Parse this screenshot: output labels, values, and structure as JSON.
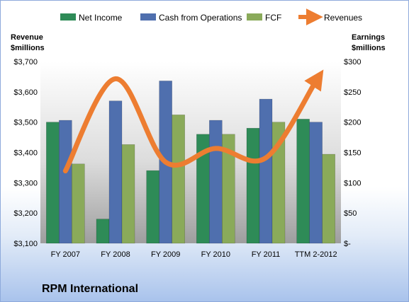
{
  "chart_data": {
    "type": "bar",
    "company": "RPM International",
    "categories": [
      "FY 2007",
      "FY 2008",
      "FY 2009",
      "FY 2010",
      "FY 2011",
      "TTM 2-2012"
    ],
    "left_axis": {
      "title_line1": "Revenue",
      "title_line2": "$millions",
      "ylim": [
        3100,
        3700
      ],
      "ticks": [
        3100,
        3200,
        3300,
        3400,
        3500,
        3600,
        3700
      ],
      "tick_labels": [
        "$3,100",
        "$3,200",
        "$3,300",
        "$3,400",
        "$3,500",
        "$3,600",
        "$3,700"
      ]
    },
    "right_axis": {
      "title_line1": "Earnings",
      "title_line2": "$millions",
      "ylim": [
        0,
        300
      ],
      "ticks": [
        0,
        50,
        100,
        150,
        200,
        250,
        300
      ],
      "tick_labels": [
        "$-",
        "$50",
        "$100",
        "$150",
        "$200",
        "$250",
        "$300"
      ]
    },
    "series": [
      {
        "name": "Net Income",
        "type": "bar",
        "axis": "right",
        "color": "#2e8b57",
        "values": [
          200,
          40,
          120,
          180,
          190,
          205
        ]
      },
      {
        "name": "Cash from Operations",
        "type": "bar",
        "axis": "right",
        "color": "#4f6fae",
        "values": [
          203,
          235,
          268,
          203,
          238,
          200
        ]
      },
      {
        "name": "FCF",
        "type": "bar",
        "axis": "right",
        "color": "#8aaa5a",
        "values": [
          131,
          163,
          212,
          180,
          200,
          147
        ]
      },
      {
        "name": "Revenues",
        "type": "line",
        "axis": "left",
        "color": "#ed7d31",
        "values": [
          3339,
          3643,
          3368,
          3413,
          3382,
          3635
        ]
      }
    ],
    "legend_position": "top",
    "grid": false
  }
}
